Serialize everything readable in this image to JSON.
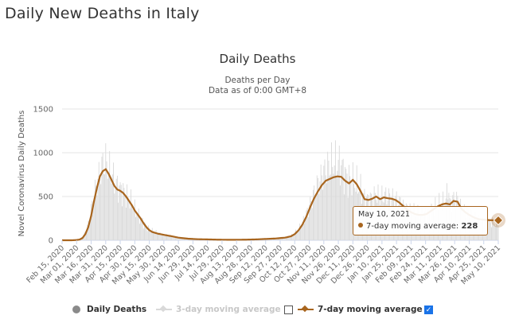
{
  "page": {
    "title": "Daily New Deaths in Italy"
  },
  "chart_data": {
    "type": "bar",
    "title": "Daily Deaths",
    "subtitle": "Deaths per Day",
    "subtitle2": "Data as of 0:00 GMT+8",
    "ylabel": "Novel Coronavirus Daily Deaths",
    "xlabel": "",
    "ylim": [
      0,
      1500
    ],
    "yticks": [
      0,
      500,
      1000,
      1500
    ],
    "grid": true,
    "x_start": "Feb 15, 2020",
    "x_end": "May 10, 2021",
    "xtick_labels": [
      "Feb 15, 2020",
      "Mar 01, 2020",
      "Mar 16, 2020",
      "Mar 31, 2020",
      "Apr 15, 2020",
      "Apr 30, 2020",
      "May 15, 2020",
      "May 30, 2020",
      "Jun 14, 2020",
      "Jun 29, 2020",
      "Jul 14, 2020",
      "Jul 29, 2020",
      "Aug 13, 2020",
      "Aug 28, 2020",
      "Sep 12, 2020",
      "Sep 27, 2020",
      "Oct 12, 2020",
      "Oct 27, 2020",
      "Nov 11, 2020",
      "Nov 26, 2020",
      "Dec 11, 2020",
      "Dec 26, 2020",
      "Jan 10, 2021",
      "Jan 25, 2021",
      "Feb 09, 2021",
      "Feb 24, 2021",
      "Mar 11, 2021",
      "Mar 26, 2021",
      "Apr 10, 2021",
      "Apr 25, 2021",
      "May 10, 2021"
    ],
    "series": [
      {
        "name": "Daily Deaths",
        "color": "#d9d9d9",
        "note": "daily bars, approximated by the 7-day trend",
        "anchors": [
          [
            0,
            0
          ],
          [
            10,
            0
          ],
          [
            15,
            5
          ],
          [
            18,
            15
          ],
          [
            21,
            40
          ],
          [
            24,
            95
          ],
          [
            27,
            190
          ],
          [
            30,
            350
          ],
          [
            33,
            520
          ],
          [
            36,
            650
          ],
          [
            39,
            780
          ],
          [
            42,
            870
          ],
          [
            45,
            900
          ],
          [
            48,
            820
          ],
          [
            51,
            760
          ],
          [
            54,
            680
          ],
          [
            57,
            620
          ],
          [
            60,
            590
          ],
          [
            63,
            560
          ],
          [
            66,
            520
          ],
          [
            69,
            470
          ],
          [
            72,
            420
          ],
          [
            75,
            350
          ],
          [
            78,
            300
          ],
          [
            81,
            250
          ],
          [
            84,
            200
          ],
          [
            87,
            160
          ],
          [
            90,
            130
          ],
          [
            93,
            110
          ],
          [
            96,
            95
          ],
          [
            99,
            80
          ],
          [
            105,
            62
          ],
          [
            112,
            50
          ],
          [
            120,
            32
          ],
          [
            130,
            20
          ],
          [
            140,
            12
          ],
          [
            150,
            10
          ],
          [
            160,
            8
          ],
          [
            170,
            6
          ],
          [
            180,
            5
          ],
          [
            190,
            6
          ],
          [
            200,
            10
          ],
          [
            210,
            14
          ],
          [
            220,
            20
          ],
          [
            230,
            32
          ],
          [
            236,
            48
          ],
          [
            240,
            80
          ],
          [
            244,
            130
          ],
          [
            248,
            200
          ],
          [
            252,
            300
          ],
          [
            256,
            420
          ],
          [
            260,
            540
          ],
          [
            264,
            650
          ],
          [
            268,
            740
          ],
          [
            272,
            810
          ],
          [
            276,
            860
          ],
          [
            280,
            890
          ],
          [
            284,
            880
          ],
          [
            288,
            860
          ],
          [
            292,
            750
          ],
          [
            296,
            700
          ],
          [
            300,
            680
          ],
          [
            304,
            640
          ],
          [
            308,
            580
          ],
          [
            312,
            480
          ],
          [
            316,
            470
          ],
          [
            320,
            480
          ],
          [
            324,
            520
          ],
          [
            328,
            480
          ],
          [
            332,
            510
          ],
          [
            336,
            505
          ],
          [
            340,
            490
          ],
          [
            344,
            470
          ],
          [
            348,
            440
          ],
          [
            352,
            400
          ],
          [
            356,
            360
          ],
          [
            360,
            330
          ],
          [
            364,
            320
          ],
          [
            368,
            300
          ],
          [
            372,
            300
          ],
          [
            376,
            310
          ],
          [
            380,
            330
          ],
          [
            384,
            370
          ],
          [
            388,
            400
          ],
          [
            392,
            430
          ],
          [
            396,
            440
          ],
          [
            398,
            650
          ],
          [
            400,
            420
          ],
          [
            404,
            480
          ],
          [
            408,
            460
          ],
          [
            412,
            360
          ],
          [
            416,
            330
          ],
          [
            420,
            300
          ],
          [
            425,
            260
          ],
          [
            430,
            230
          ],
          [
            435,
            220
          ],
          [
            440,
            210
          ],
          [
            450,
            200
          ]
        ]
      },
      {
        "name": "3-day moving average",
        "color": "#d9d9d9",
        "visible": false,
        "legend_label": "3-day moving average"
      },
      {
        "name": "7-day moving average",
        "color": "#a8651e",
        "legend_label": "7-day moving average",
        "anchors": [
          [
            0,
            0
          ],
          [
            10,
            0
          ],
          [
            15,
            3
          ],
          [
            18,
            8
          ],
          [
            21,
            25
          ],
          [
            24,
            70
          ],
          [
            27,
            150
          ],
          [
            30,
            280
          ],
          [
            33,
            450
          ],
          [
            36,
            600
          ],
          [
            39,
            730
          ],
          [
            42,
            790
          ],
          [
            45,
            812
          ],
          [
            48,
            760
          ],
          [
            51,
            690
          ],
          [
            54,
            620
          ],
          [
            57,
            580
          ],
          [
            60,
            565
          ],
          [
            63,
            540
          ],
          [
            66,
            500
          ],
          [
            69,
            450
          ],
          [
            72,
            400
          ],
          [
            75,
            340
          ],
          [
            78,
            295
          ],
          [
            81,
            250
          ],
          [
            84,
            195
          ],
          [
            87,
            150
          ],
          [
            90,
            115
          ],
          [
            93,
            95
          ],
          [
            96,
            85
          ],
          [
            99,
            75
          ],
          [
            105,
            62
          ],
          [
            112,
            48
          ],
          [
            120,
            30
          ],
          [
            130,
            18
          ],
          [
            140,
            12
          ],
          [
            150,
            10
          ],
          [
            160,
            7
          ],
          [
            170,
            6
          ],
          [
            180,
            6
          ],
          [
            190,
            7
          ],
          [
            200,
            10
          ],
          [
            210,
            15
          ],
          [
            220,
            20
          ],
          [
            230,
            30
          ],
          [
            236,
            45
          ],
          [
            240,
            70
          ],
          [
            244,
            115
          ],
          [
            248,
            180
          ],
          [
            252,
            270
          ],
          [
            256,
            380
          ],
          [
            260,
            480
          ],
          [
            264,
            560
          ],
          [
            268,
            630
          ],
          [
            272,
            680
          ],
          [
            276,
            700
          ],
          [
            280,
            720
          ],
          [
            284,
            730
          ],
          [
            288,
            725
          ],
          [
            292,
            680
          ],
          [
            296,
            650
          ],
          [
            300,
            690
          ],
          [
            304,
            640
          ],
          [
            308,
            560
          ],
          [
            312,
            470
          ],
          [
            316,
            460
          ],
          [
            320,
            475
          ],
          [
            324,
            500
          ],
          [
            328,
            470
          ],
          [
            332,
            490
          ],
          [
            336,
            480
          ],
          [
            340,
            475
          ],
          [
            344,
            460
          ],
          [
            348,
            430
          ],
          [
            352,
            390
          ],
          [
            356,
            350
          ],
          [
            360,
            320
          ],
          [
            364,
            300
          ],
          [
            368,
            290
          ],
          [
            372,
            290
          ],
          [
            376,
            300
          ],
          [
            380,
            330
          ],
          [
            384,
            360
          ],
          [
            388,
            390
          ],
          [
            392,
            410
          ],
          [
            396,
            420
          ],
          [
            400,
            410
          ],
          [
            404,
            450
          ],
          [
            408,
            440
          ],
          [
            412,
            360
          ],
          [
            416,
            320
          ],
          [
            420,
            290
          ],
          [
            425,
            260
          ],
          [
            430,
            240
          ],
          [
            435,
            235
          ],
          [
            440,
            230
          ],
          [
            450,
            228
          ]
        ]
      }
    ],
    "tooltip": {
      "date": "May 10, 2021",
      "label": "7-day moving average:",
      "value": "228"
    },
    "legend": {
      "daily_label": "Daily Deaths",
      "ma3_label": "3-day moving average",
      "ma7_label": "7-day moving average",
      "ma3_checked": false,
      "ma7_checked": true,
      "placement": "bottom-center"
    }
  }
}
